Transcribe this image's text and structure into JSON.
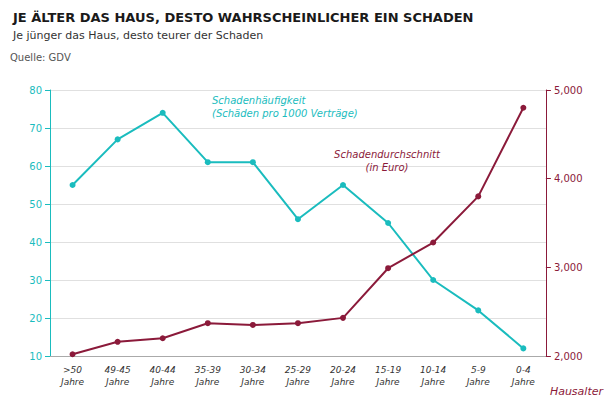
{
  "chart_data": {
    "type": "line",
    "title": "JE ÄLTER DAS HAUS, DESTO WAHRSCHEINLICHER EIN SCHADEN",
    "subtitle": "Je jünger das Haus, desto teurer der Schaden",
    "source": "Quelle: GDV",
    "xlabel": "Hausalter",
    "categories": [
      ">50\nJahre",
      "49-45\nJahre",
      "40-44\nJahre",
      "35-39\nJahre",
      "30-34\nJahre",
      "25-29\nJahre",
      "20-24\nJahre",
      "15-19\nJahre",
      "10-14\nJahre",
      "5-9\nJahre",
      "0-4\nJahre"
    ],
    "series": [
      {
        "color": "#1ABCBE",
        "marker": "circle",
        "values": [
          55,
          67,
          74,
          61,
          61,
          46,
          55,
          45,
          30,
          22,
          12
        ]
      },
      {
        "color": "#8B1A3A",
        "marker": "circle",
        "axis": "y2",
        "values": [
          2020,
          2160,
          2200,
          2370,
          2350,
          2370,
          2430,
          2990,
          3280,
          3800,
          4800
        ]
      }
    ],
    "annotations": [
      "Schadenhäufigkeit\n(Schäden pro 1000 Verträge)",
      "Schadendurchschnitt\n(in Euro)"
    ],
    "ylim": [
      10,
      80
    ],
    "yticks": [
      10,
      20,
      30,
      40,
      50,
      60,
      70,
      80
    ],
    "y2lim": [
      2000,
      5000
    ],
    "y2ticks": [
      2000,
      3000,
      4000,
      5000
    ],
    "grid": true
  }
}
